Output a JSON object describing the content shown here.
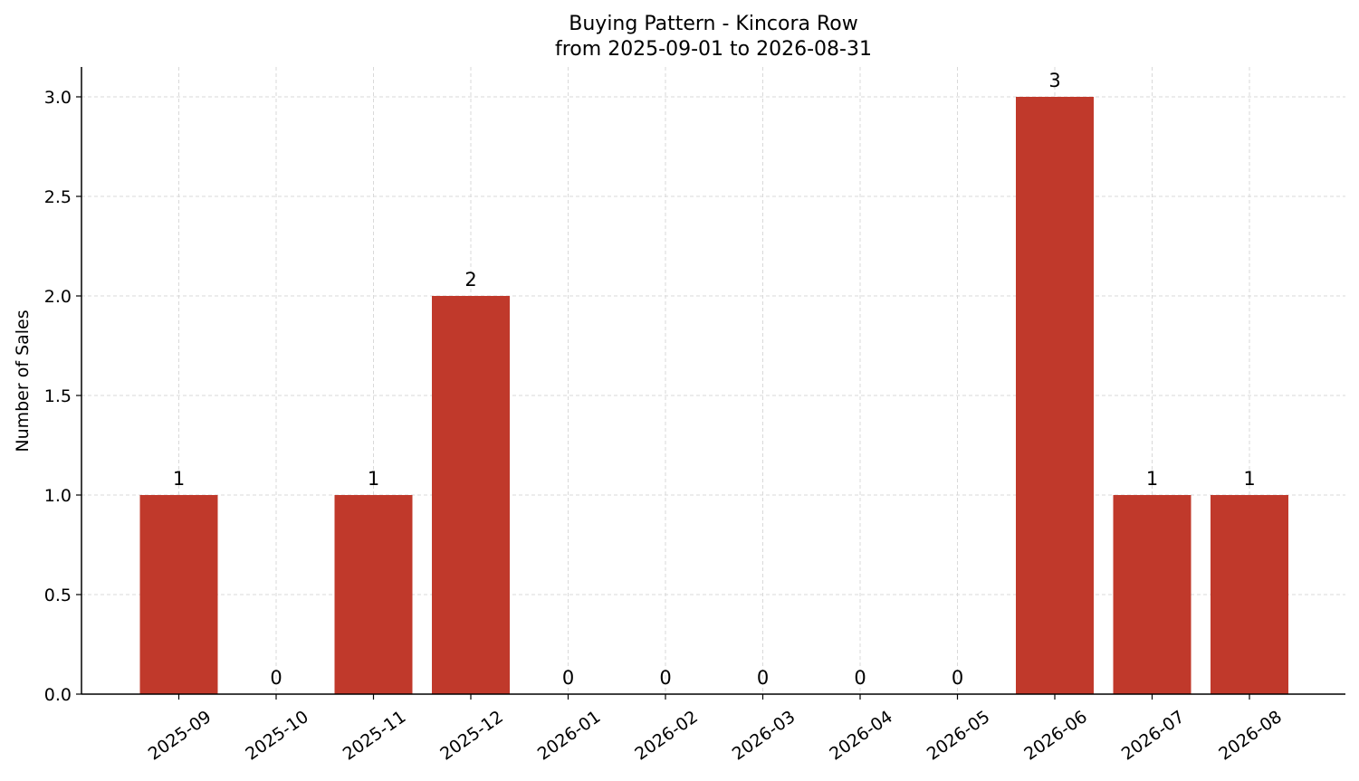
{
  "chart_data": {
    "type": "bar",
    "title": "Buying Pattern - Kincora Row",
    "subtitle": "from 2025-09-01 to 2026-08-31",
    "xlabel": "",
    "ylabel": "Number of Sales",
    "categories": [
      "2025-09",
      "2025-10",
      "2025-11",
      "2025-12",
      "2026-01",
      "2026-02",
      "2026-03",
      "2026-04",
      "2026-05",
      "2026-06",
      "2026-07",
      "2026-08"
    ],
    "values": [
      1,
      0,
      1,
      2,
      0,
      0,
      0,
      0,
      0,
      3,
      1,
      1
    ],
    "ylim": [
      0,
      3.15
    ],
    "yticks": [
      "0.0",
      "0.5",
      "1.0",
      "1.5",
      "2.0",
      "2.5",
      "3.0"
    ],
    "bar_color": "#c0392b",
    "grid": true,
    "data_labels": true,
    "legend": "none"
  }
}
